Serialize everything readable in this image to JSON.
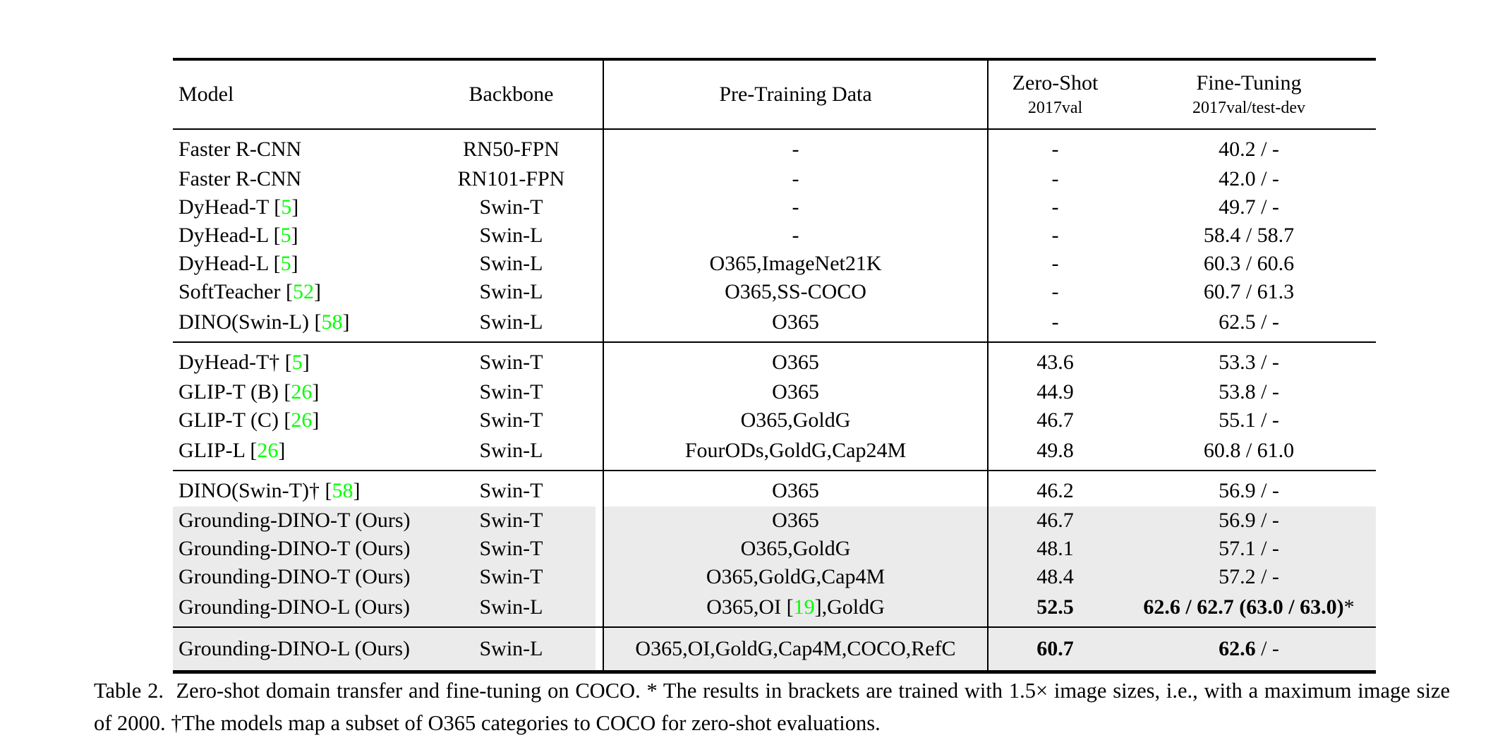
{
  "colors": {
    "citation": "#00ff00",
    "highlight": "#ebebeb",
    "rule": "#000000"
  },
  "paper_table": {
    "columns": [
      {
        "label": "Model"
      },
      {
        "label": "Backbone"
      },
      {
        "label": "Pre-Training Data"
      },
      {
        "label": "Zero-Shot",
        "sublabel": "2017val"
      },
      {
        "label": "Fine-Tuning",
        "sublabel": "2017val/test-dev"
      }
    ],
    "groups": [
      {
        "rows": [
          {
            "model": "Faster R-CNN",
            "backbone": "RN50-FPN",
            "pretrain": "-",
            "zero_shot": "-",
            "fine_tuning": "40.2 / -"
          },
          {
            "model": "Faster R-CNN",
            "backbone": "RN101-FPN",
            "pretrain": "-",
            "zero_shot": "-",
            "fine_tuning": "42.0 / -"
          },
          {
            "model": "DyHead-T [5]",
            "backbone": "Swin-T",
            "pretrain": "-",
            "zero_shot": "-",
            "fine_tuning": "49.7 / -"
          },
          {
            "model": "DyHead-L [5]",
            "backbone": "Swin-L",
            "pretrain": "-",
            "zero_shot": "-",
            "fine_tuning": "58.4 / 58.7"
          },
          {
            "model": "DyHead-L [5]",
            "backbone": "Swin-L",
            "pretrain": "O365,ImageNet21K",
            "zero_shot": "-",
            "fine_tuning": "60.3 / 60.6"
          },
          {
            "model": "SoftTeacher [52]",
            "backbone": "Swin-L",
            "pretrain": "O365,SS-COCO",
            "zero_shot": "-",
            "fine_tuning": "60.7 / 61.3"
          },
          {
            "model": "DINO(Swin-L) [58]",
            "backbone": "Swin-L",
            "pretrain": "O365",
            "zero_shot": "-",
            "fine_tuning": "62.5 / -"
          }
        ]
      },
      {
        "rows": [
          {
            "model": "DyHead-T† [5]",
            "backbone": "Swin-T",
            "pretrain": "O365",
            "zero_shot": "43.6",
            "fine_tuning": "53.3 / -"
          },
          {
            "model": "GLIP-T (B) [26]",
            "backbone": "Swin-T",
            "pretrain": "O365",
            "zero_shot": "44.9",
            "fine_tuning": "53.8 / -"
          },
          {
            "model": "GLIP-T (C) [26]",
            "backbone": "Swin-T",
            "pretrain": "O365,GoldG",
            "zero_shot": "46.7",
            "fine_tuning": "55.1 / -"
          },
          {
            "model": "GLIP-L [26]",
            "backbone": "Swin-L",
            "pretrain": "FourODs,GoldG,Cap24M",
            "zero_shot": "49.8",
            "fine_tuning": "60.8 / 61.0"
          }
        ]
      },
      {
        "rows": [
          {
            "model": "DINO(Swin-T)† [58]",
            "backbone": "Swin-T",
            "pretrain": "O365",
            "zero_shot": "46.2",
            "fine_tuning": "56.9 / -"
          },
          {
            "model": "Grounding-DINO-T (Ours)",
            "backbone": "Swin-T",
            "pretrain": "O365",
            "zero_shot": "46.7",
            "fine_tuning": "56.9 / -",
            "highlight": true
          },
          {
            "model": "Grounding-DINO-T (Ours)",
            "backbone": "Swin-T",
            "pretrain": "O365,GoldG",
            "zero_shot": "48.1",
            "fine_tuning": "57.1 / -",
            "highlight": true
          },
          {
            "model": "Grounding-DINO-T (Ours)",
            "backbone": "Swin-T",
            "pretrain": "O365,GoldG,Cap4M",
            "zero_shot": "48.4",
            "fine_tuning": "57.2 / -",
            "highlight": true
          },
          {
            "model": "Grounding-DINO-L (Ours)",
            "backbone": "Swin-L",
            "pretrain": "O365,OI [19],GoldG",
            "zero_shot": [
              {
                "t": "52.5",
                "b": true
              }
            ],
            "fine_tuning": [
              {
                "t": "62.6 / 62.7 (63.0 / 63.0)",
                "b": true
              },
              {
                "t": "*",
                "b": false
              }
            ],
            "highlight": true
          }
        ]
      },
      {
        "rows": [
          {
            "model": "Grounding-DINO-L (Ours)",
            "backbone": "Swin-L",
            "pretrain": "O365,OI,GoldG,Cap4M,COCO,RefC",
            "zero_shot": [
              {
                "t": "60.7",
                "b": true
              }
            ],
            "fine_tuning": [
              {
                "t": "62.6",
                "b": true
              },
              {
                "t": " / -",
                "b": false
              }
            ],
            "highlight": true
          }
        ]
      }
    ],
    "caption": "Table 2.  Zero-shot domain transfer and fine-tuning on COCO. * The results in brackets are trained with 1.5× image sizes, i.e., with a maximum image size of 2000. †The models map a subset of O365 categories to COCO for zero-shot evaluations."
  }
}
